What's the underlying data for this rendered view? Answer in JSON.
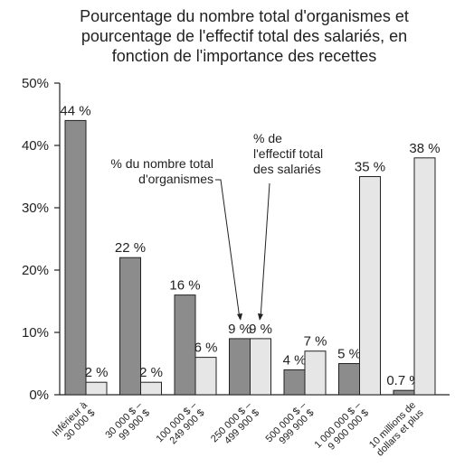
{
  "chart_data": {
    "type": "bar",
    "title": "Pourcentage du nombre total d'organismes et\npourcentage de l'effectif total des salariés, en\nfonction de l'importance des recettes",
    "categories": [
      "Inférieur à\n30 000 $",
      "30 000 $ –\n99 900 $",
      "100 000 $ –\n249 900 $",
      "250 000 $ –\n499 900 $",
      "500 000 $ –\n999 900 $",
      "1 000 000 $ –\n9 900 000 $",
      "10 millions de\ndollars et plus"
    ],
    "series": [
      {
        "name": "% du nombre total\nd'organismes",
        "color": "#8c8c8c",
        "values": [
          44,
          22,
          16,
          9,
          4,
          5,
          0.7
        ],
        "value_labels": [
          "44 %",
          "22 %",
          "16 %",
          "9 %",
          "4 %",
          "5 %",
          "0.7 %"
        ]
      },
      {
        "name": "% de\nl'effectif total\ndes salariés",
        "color": "#e6e6e6",
        "values": [
          2,
          2,
          6,
          9,
          7,
          35,
          38
        ],
        "value_labels": [
          "2 %",
          "2 %",
          "6 %",
          "9 %",
          "7 %",
          "35 %",
          "38 %"
        ]
      }
    ],
    "ylim": [
      0,
      50
    ],
    "yticks": [
      {
        "value": 0,
        "label": "0%"
      },
      {
        "value": 10,
        "label": "10%"
      },
      {
        "value": 20,
        "label": "20%"
      },
      {
        "value": 30,
        "label": "30%"
      },
      {
        "value": 40,
        "label": "40%"
      },
      {
        "value": 50,
        "label": "50%"
      }
    ],
    "grid": false
  }
}
